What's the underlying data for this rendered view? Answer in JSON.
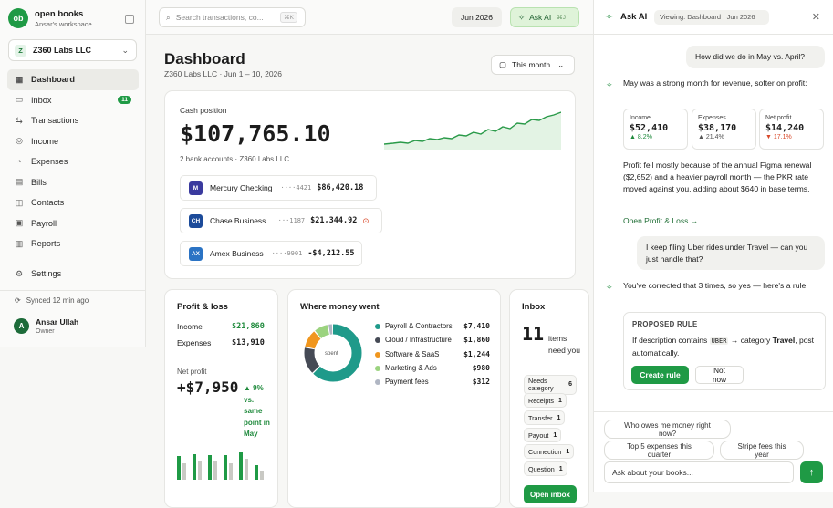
{
  "brand": {
    "name": "open books",
    "workspace": "Ansar's workspace",
    "logo_text": "ob"
  },
  "org": {
    "name": "Z360 Labs LLC",
    "badge": "Z"
  },
  "nav": [
    {
      "label": "Dashboard",
      "icon": "grid-icon",
      "active": true
    },
    {
      "label": "Inbox",
      "icon": "inbox-icon",
      "badge": "11"
    },
    {
      "label": "Transactions",
      "icon": "arrows-icon"
    },
    {
      "label": "Income",
      "icon": "dollar-icon"
    },
    {
      "label": "Expenses",
      "icon": "receipt-icon"
    },
    {
      "label": "Bills",
      "icon": "document-icon"
    },
    {
      "label": "Contacts",
      "icon": "contacts-icon"
    },
    {
      "label": "Payroll",
      "icon": "wallet-icon"
    },
    {
      "label": "Reports",
      "icon": "chart-icon"
    }
  ],
  "settings": {
    "label": "Settings"
  },
  "synced": "Synced 12 min ago",
  "user": {
    "initial": "A",
    "name": "Ansar Ullah",
    "role": "Owner"
  },
  "topbar": {
    "search_placeholder": "Search transactions, co...",
    "search_kbd": "⌘K",
    "date": "Jun 2026",
    "ask_ai": "Ask AI",
    "ask_ai_kbd": "⌘J"
  },
  "dashboard": {
    "title": "Dashboard",
    "subtitle": "Z360 Labs LLC · Jun 1 – 10, 2026",
    "period": "This month"
  },
  "cash": {
    "label": "Cash position",
    "total": "$107,765.10",
    "accounts_summary": "2 bank accounts · Z360 Labs LLC",
    "accounts": [
      {
        "logo": "M",
        "name": "Mercury Checking",
        "mask": "····4421",
        "balance": "$86,420.18",
        "color": "#3a3a9e"
      },
      {
        "logo": "CH",
        "name": "Chase Business",
        "mask": "····1187",
        "balance": "$21,344.92",
        "color": "#1c4b9a",
        "warning": "⊙"
      },
      {
        "logo": "AX",
        "name": "Amex Business",
        "mask": "····9901",
        "balance": "-$4,212.55",
        "color": "#2b73c4"
      }
    ]
  },
  "pl": {
    "title": "Profit & loss",
    "income_label": "Income",
    "income": "$21,860",
    "expenses_label": "Expenses",
    "expenses": "$13,910",
    "net_label": "Net profit",
    "net": "+$7,950",
    "delta": "▲ 9% vs. same point in May"
  },
  "where": {
    "title": "Where money went",
    "center": "spent",
    "items": [
      {
        "name": "Payroll & Contractors",
        "value": "$7,410",
        "color": "#1f9a8a",
        "amount": 7410
      },
      {
        "name": "Cloud / Infrastructure",
        "value": "$1,860",
        "color": "#454a55",
        "amount": 1860
      },
      {
        "name": "Software & SaaS",
        "value": "$1,244",
        "color": "#f0961e",
        "amount": 1244
      },
      {
        "name": "Marketing & Ads",
        "value": "$980",
        "color": "#9bd37f",
        "amount": 980
      },
      {
        "name": "Payment fees",
        "value": "$312",
        "color": "#b0b6c3",
        "amount": 312
      }
    ]
  },
  "inbox": {
    "title": "Inbox",
    "count": "11",
    "count_text": "items need you",
    "chips": [
      {
        "label": "Needs category",
        "n": "6"
      },
      {
        "label": "Receipts",
        "n": "1"
      },
      {
        "label": "Transfer",
        "n": "1"
      },
      {
        "label": "Payout",
        "n": "1"
      },
      {
        "label": "Connection",
        "n": "1"
      },
      {
        "label": "Question",
        "n": "1"
      }
    ],
    "button": "Open inbox"
  },
  "ai": {
    "title": "Ask AI",
    "viewing": "Viewing: Dashboard · Jun 2026",
    "q1": "How did we do in May vs. April?",
    "a1": "May was a strong month for revenue, softer on profit:",
    "metrics": [
      {
        "label": "Income",
        "value": "$52,410",
        "delta": "▲ 8.2%",
        "color": "#1f8a3c"
      },
      {
        "label": "Expenses",
        "value": "$38,170",
        "delta": "▲ 21.4%",
        "color": "#555555"
      },
      {
        "label": "Net profit",
        "value": "$14,240",
        "delta": "▼ 17.1%",
        "color": "#d8492a"
      }
    ],
    "a2": "Profit fell mostly because of the annual Figma renewal ($2,652) and a heavier payroll month — the PKR rate moved against you, adding about $640 in base terms.",
    "link": "Open Profit & Loss →",
    "q2": "I keep filing Uber rides under Travel — can you just handle that?",
    "a3": "You've corrected that 3 times, so yes — here's a rule:",
    "rule": {
      "heading": "PROPOSED RULE",
      "pre": "If description contains",
      "code": "UBER",
      "mid": "→ category",
      "cat": "Travel",
      "post": ", post automatically.",
      "create": "Create rule",
      "no": "Not now"
    },
    "suggestions": [
      "Who owes me money right now?",
      "Top 5 expenses this quarter",
      "Stripe fees this year"
    ],
    "input_placeholder": "Ask about your books..."
  }
}
